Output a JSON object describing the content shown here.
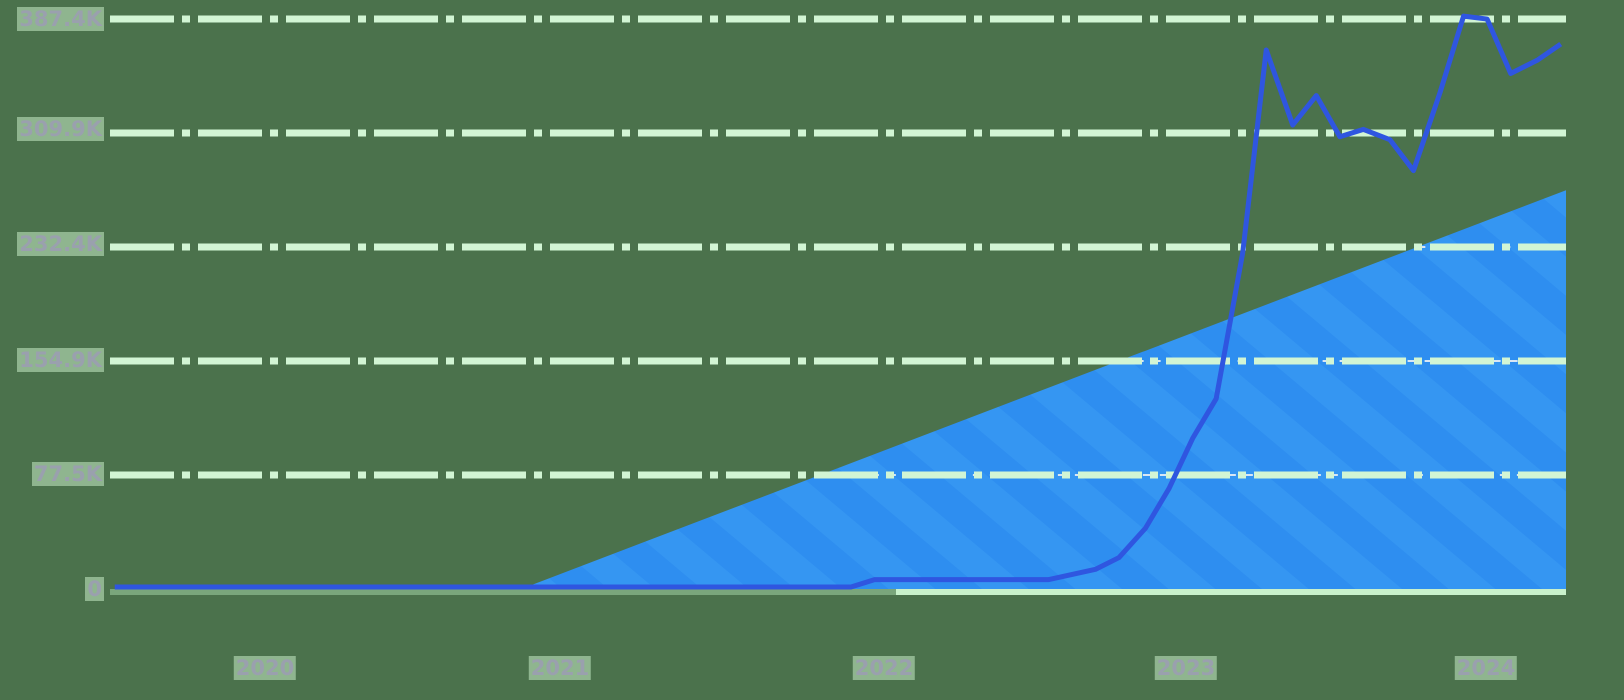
{
  "chart_data": {
    "type": "line",
    "title": "",
    "xlabel": "",
    "ylabel": "",
    "ylim": [
      0,
      387400
    ],
    "grid": true,
    "legend": null,
    "y_ticks": [
      "0",
      "77.5K",
      "154.9K",
      "232.4K",
      "309.9K",
      "387.4K"
    ],
    "x_ticks": [
      "2020",
      "2021",
      "2022",
      "2023",
      "2024"
    ],
    "colors": {
      "line": "#2f56e0",
      "area": "#2e8ef0",
      "background": "#4b724c",
      "grid": "#d2f5d4"
    },
    "series": [
      {
        "name": "line",
        "type": "line",
        "points": [
          {
            "x": 2019.5,
            "y": 0
          },
          {
            "x": 2021.0,
            "y": 0
          },
          {
            "x": 2022.0,
            "y": 0
          },
          {
            "x": 2022.08,
            "y": 5000
          },
          {
            "x": 2022.67,
            "y": 5000
          },
          {
            "x": 2022.83,
            "y": 12000
          },
          {
            "x": 2022.91,
            "y": 20000
          },
          {
            "x": 2023.0,
            "y": 40000
          },
          {
            "x": 2023.08,
            "y": 67000
          },
          {
            "x": 2023.16,
            "y": 101000
          },
          {
            "x": 2023.24,
            "y": 128000
          },
          {
            "x": 2023.33,
            "y": 227000
          },
          {
            "x": 2023.41,
            "y": 365000
          },
          {
            "x": 2023.5,
            "y": 314000
          },
          {
            "x": 2023.58,
            "y": 334000
          },
          {
            "x": 2023.66,
            "y": 306000
          },
          {
            "x": 2023.74,
            "y": 311000
          },
          {
            "x": 2023.83,
            "y": 304000
          },
          {
            "x": 2023.91,
            "y": 283000
          },
          {
            "x": 2024.0,
            "y": 336000
          },
          {
            "x": 2024.08,
            "y": 388000
          },
          {
            "x": 2024.16,
            "y": 386000
          },
          {
            "x": 2024.24,
            "y": 349000
          },
          {
            "x": 2024.33,
            "y": 358000
          },
          {
            "x": 2024.41,
            "y": 369000
          }
        ]
      },
      {
        "name": "area",
        "type": "area",
        "points": [
          {
            "x": 2020.88,
            "y": 0
          },
          {
            "x": 2024.43,
            "y": 271000
          }
        ]
      }
    ]
  },
  "axis": {
    "y_labels": [
      "387.4K",
      "309.9K",
      "232.4K",
      "154.9K",
      "77.5K",
      "0"
    ],
    "x_labels": [
      "2020",
      "2021",
      "2022",
      "2023",
      "2024"
    ]
  }
}
